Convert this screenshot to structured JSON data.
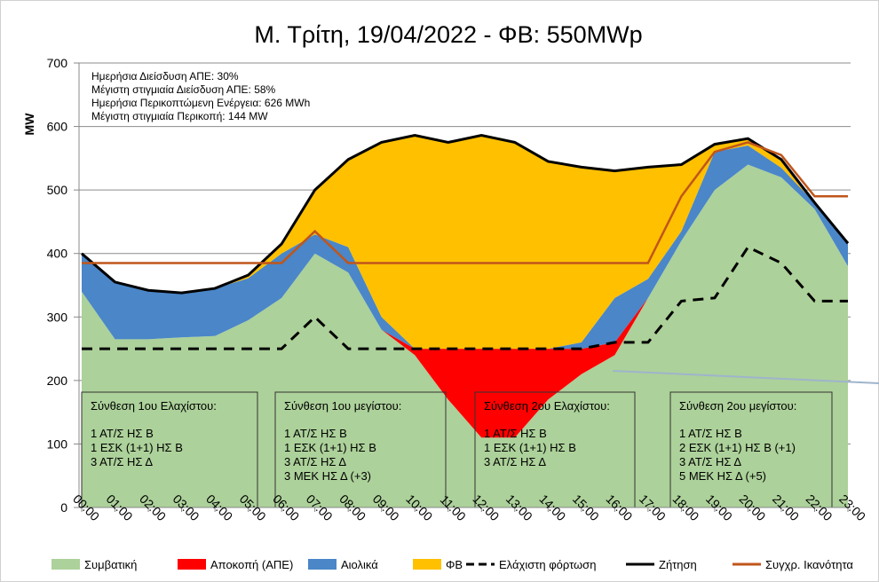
{
  "chart_data": {
    "type": "stacked_area_line",
    "title": "Μ. Τρίτη, 19/04/2022  - ΦΒ: 550MWp",
    "y_label": "MW",
    "categories": [
      "00:00",
      "01:00",
      "02:00",
      "03:00",
      "04:00",
      "05:00",
      "06:00",
      "07:00",
      "08:00",
      "09:00",
      "10:00",
      "11:00",
      "12:00",
      "13:00",
      "14:00",
      "15:00",
      "16:00",
      "17:00",
      "18:00",
      "19:00",
      "20:00",
      "21:00",
      "22:00",
      "23:00"
    ],
    "ylim": [
      0,
      700
    ],
    "yticks": [
      0,
      100,
      200,
      300,
      400,
      500,
      600,
      700
    ],
    "grid": true,
    "series": [
      {
        "name": "Συμβατική",
        "kind": "area",
        "color": "#acd19a",
        "values": [
          340,
          265,
          265,
          268,
          270,
          295,
          330,
          400,
          370,
          280,
          240,
          170,
          110,
          110,
          170,
          210,
          240,
          330,
          420,
          500,
          540,
          520,
          470,
          380
        ]
      },
      {
        "name": "Αποκοπή (ΑΠΕ)",
        "kind": "area",
        "color": "#ff0000",
        "values": [
          0,
          0,
          0,
          0,
          0,
          0,
          0,
          0,
          0,
          0,
          10,
          80,
          140,
          140,
          80,
          40,
          20,
          0,
          0,
          0,
          0,
          0,
          0,
          0
        ]
      },
      {
        "name": "Αιολικά",
        "kind": "area",
        "color": "#4a86c8",
        "values": [
          60,
          90,
          77,
          70,
          75,
          66,
          70,
          30,
          40,
          20,
          0,
          0,
          0,
          0,
          0,
          10,
          70,
          30,
          15,
          60,
          30,
          15,
          10,
          36
        ]
      },
      {
        "name": "ΦΒ",
        "kind": "area",
        "color": "#ffc000",
        "values": [
          0,
          0,
          0,
          0,
          0,
          5,
          15,
          70,
          138,
          275,
          336,
          325,
          336,
          325,
          295,
          276,
          200,
          176,
          105,
          12,
          11,
          13,
          0,
          0
        ]
      },
      {
        "name": "Ελάχιστη φόρτωση",
        "kind": "line",
        "dash": true,
        "color": "#000000",
        "values": [
          250,
          250,
          250,
          250,
          250,
          250,
          250,
          300,
          250,
          250,
          250,
          250,
          250,
          250,
          250,
          250,
          260,
          260,
          325,
          330,
          410,
          385,
          325,
          325
        ]
      },
      {
        "name": "Ζήτηση",
        "kind": "line",
        "dash": false,
        "color": "#000000",
        "values": [
          400,
          355,
          342,
          338,
          345,
          366,
          415,
          500,
          548,
          575,
          586,
          575,
          586,
          575,
          545,
          536,
          530,
          536,
          540,
          572,
          581,
          548,
          480,
          416
        ]
      },
      {
        "name": "Συγχρ. Ικανότητα",
        "kind": "line",
        "dash": false,
        "color": "#c0561b",
        "values": [
          385,
          385,
          385,
          385,
          385,
          385,
          385,
          435,
          385,
          385,
          385,
          385,
          385,
          385,
          385,
          385,
          385,
          385,
          490,
          560,
          575,
          555,
          490,
          490
        ]
      }
    ],
    "annotations": [
      "Ημερήσια Διείσδυση ΑΠΕ: 30%",
      "Μέγιστη στιγμιαία Διείσδυση ΑΠΕ: 58%",
      "Ημερήσια Περικοπτώμενη Ενέργεια: 626 MWh",
      "Μέγιστη στιγμιαία Περικοπή: 144 MW"
    ],
    "boxes": [
      {
        "title": "Σύνθεση 1ου Ελαχίστου:",
        "lines": [
          "1  ΑΤ/Σ ΗΣ Β",
          "1  ΕΣΚ (1+1) ΗΣ Β",
          "3  ΑΤ/Σ ΗΣ Δ"
        ]
      },
      {
        "title": "Σύνθεση 1ου μεγίστου:",
        "lines": [
          "1  ΑΤ/Σ ΗΣ Β",
          "1  ΕΣΚ (1+1) ΗΣ Β",
          "3  ΑΤ/Σ ΗΣ Δ",
          "3  ΜΕΚ ΗΣ Δ (+3)"
        ]
      },
      {
        "title": "Σύνθεση 2ου Ελαχίστου:",
        "lines": [
          "1  ΑΤ/Σ ΗΣ Β",
          "1  ΕΣΚ (1+1) ΗΣ Β",
          "3  ΑΤ/Σ ΗΣ Δ"
        ]
      },
      {
        "title": "Σύνθεση 2ου μεγίστου:",
        "lines": [
          "1  ΑΤ/Σ ΗΣ Β",
          "2  ΕΣΚ (1+1) ΗΣ Β (+1)",
          "3  ΑΤ/Σ ΗΣ Δ",
          "5  ΜΕΚ ΗΣ Δ (+5)"
        ]
      }
    ]
  }
}
